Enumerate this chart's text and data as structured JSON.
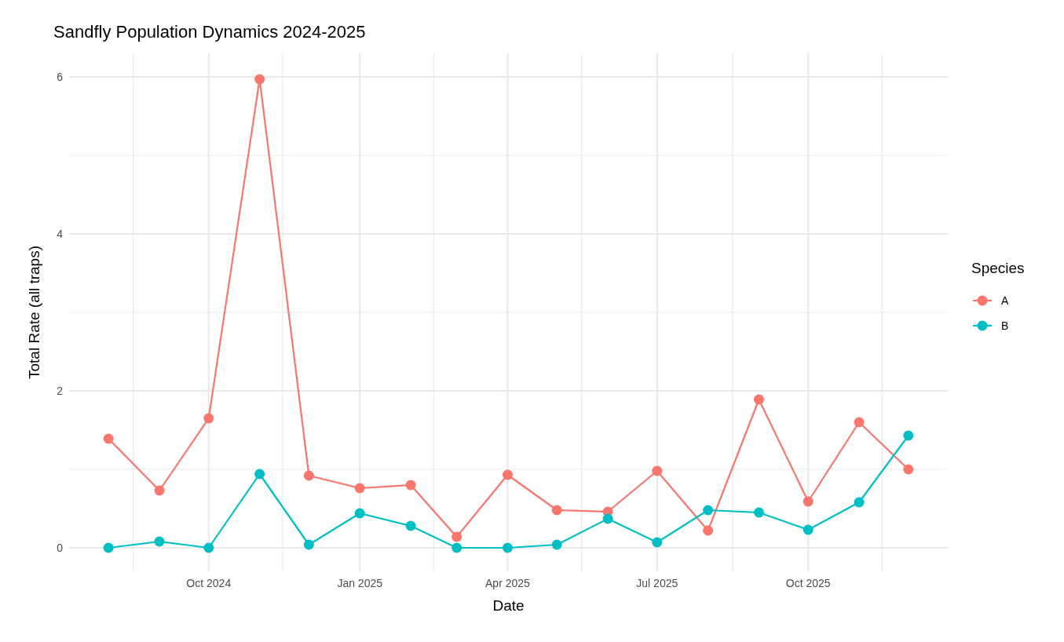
{
  "chart_data": {
    "type": "line",
    "title": "Sandfly Population Dynamics 2024-2025",
    "xlabel": "Date",
    "ylabel": "Total Rate (all traps)",
    "legend_title": "Species",
    "legend": "right",
    "grid": true,
    "marker": "circle",
    "line_style": "solid",
    "x": [
      "2024-08-01",
      "2024-09-01",
      "2024-10-01",
      "2024-11-01",
      "2024-12-01",
      "2025-01-01",
      "2025-02-01",
      "2025-03-01",
      "2025-04-01",
      "2025-05-01",
      "2025-06-01",
      "2025-07-01",
      "2025-08-01",
      "2025-09-01",
      "2025-10-01",
      "2025-11-01",
      "2025-12-01"
    ],
    "xlim": [
      "2024-07-08",
      "2025-12-25"
    ],
    "xticks": [
      {
        "value": "2024-08-16",
        "label": null
      },
      {
        "value": "2024-10-01",
        "label": "Oct 2024"
      },
      {
        "value": "2024-11-15",
        "label": null
      },
      {
        "value": "2025-01-01",
        "label": "Jan 2025"
      },
      {
        "value": "2025-02-15",
        "label": null
      },
      {
        "value": "2025-04-01",
        "label": "Apr 2025"
      },
      {
        "value": "2025-05-16",
        "label": null
      },
      {
        "value": "2025-07-01",
        "label": "Jul 2025"
      },
      {
        "value": "2025-08-16",
        "label": null
      },
      {
        "value": "2025-10-01",
        "label": "Oct 2025"
      },
      {
        "value": "2025-11-15",
        "label": null
      }
    ],
    "ylim": [
      -0.3,
      6.3
    ],
    "yticks": [
      0,
      {
        "value": 1,
        "label": null
      },
      2,
      {
        "value": 3,
        "label": null
      },
      4,
      {
        "value": 5,
        "label": null
      },
      6
    ],
    "series": [
      {
        "name": "A",
        "color": "#f8766d",
        "values": [
          1.39,
          0.73,
          1.65,
          5.97,
          0.92,
          0.76,
          0.8,
          0.14,
          0.93,
          0.48,
          0.46,
          0.98,
          0.22,
          1.89,
          0.59,
          1.6,
          1.0
        ]
      },
      {
        "name": "B",
        "color": "#00bfc4",
        "values": [
          0,
          0.08,
          0,
          0.94,
          0.04,
          0.44,
          0.28,
          0,
          0,
          0.04,
          0.37,
          0.07,
          0.48,
          0.45,
          0.23,
          0.58,
          1.43
        ]
      }
    ]
  }
}
